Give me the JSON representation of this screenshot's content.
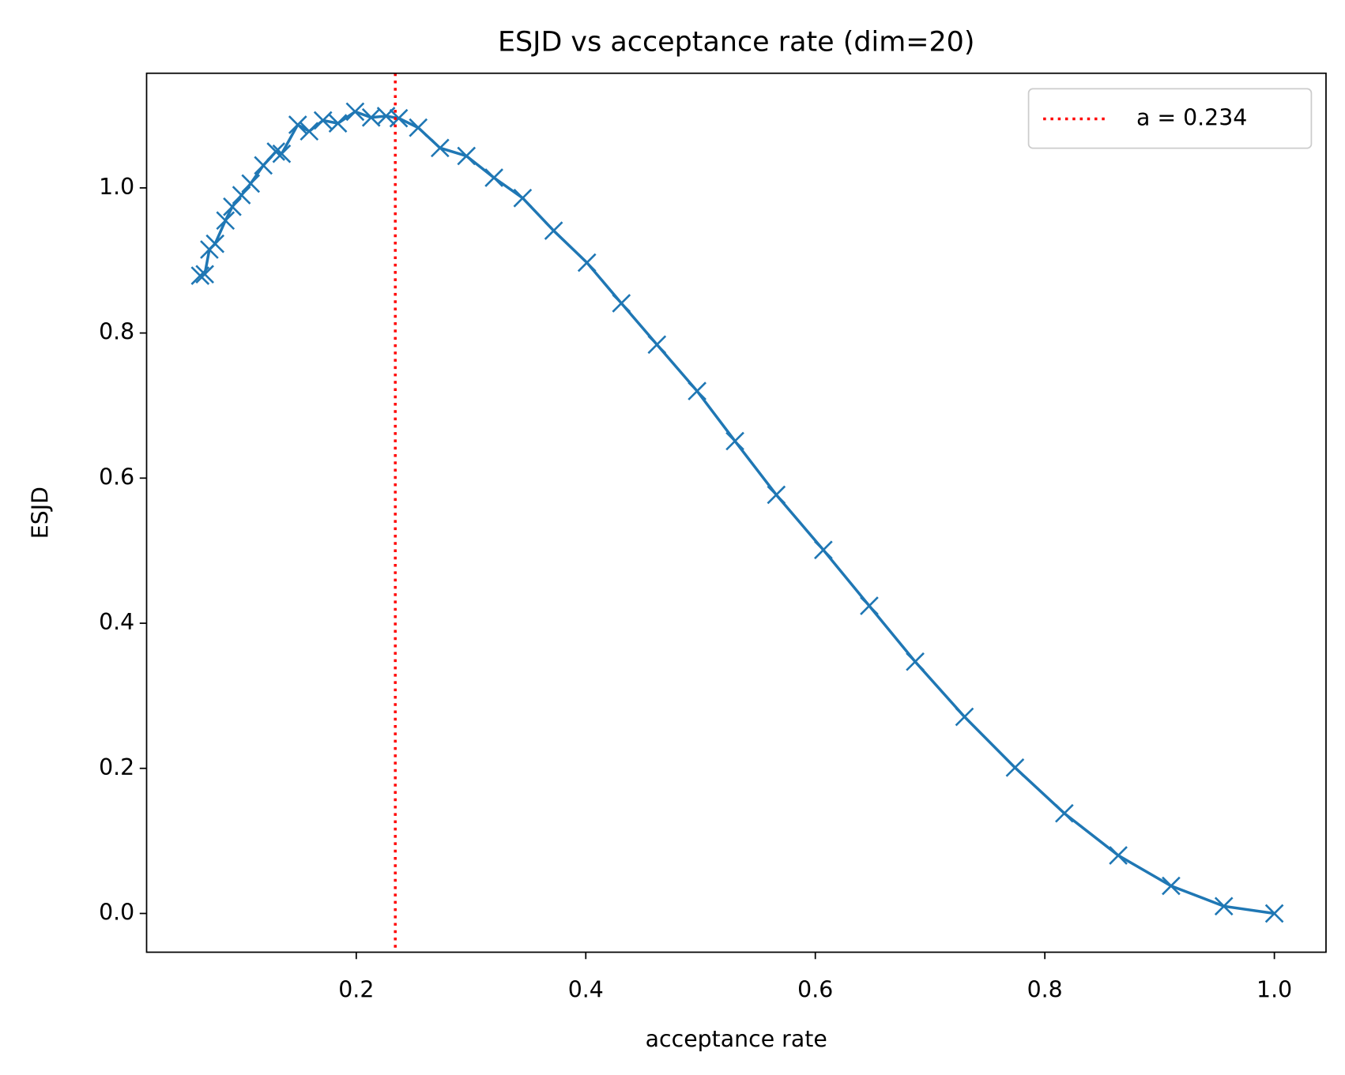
{
  "chart_data": {
    "type": "line",
    "title": "ESJD vs acceptance rate (dim=20)",
    "x_label": "acceptance rate",
    "y_label": "ESJD",
    "x": [
      0.064,
      0.068,
      0.072,
      0.077,
      0.086,
      0.092,
      0.1,
      0.108,
      0.119,
      0.13,
      0.135,
      0.149,
      0.159,
      0.171,
      0.184,
      0.199,
      0.213,
      0.226,
      0.237,
      0.254,
      0.273,
      0.296,
      0.32,
      0.345,
      0.372,
      0.401,
      0.431,
      0.462,
      0.497,
      0.53,
      0.566,
      0.607,
      0.647,
      0.687,
      0.73,
      0.774,
      0.817,
      0.864,
      0.91,
      0.956,
      1.0
    ],
    "series": [
      {
        "name": "ESJD",
        "color": "#1f77b4",
        "marker": "x",
        "values": [
          0.879,
          0.881,
          0.915,
          0.923,
          0.955,
          0.974,
          0.99,
          1.006,
          1.031,
          1.05,
          1.047,
          1.087,
          1.078,
          1.093,
          1.089,
          1.105,
          1.097,
          1.099,
          1.096,
          1.083,
          1.055,
          1.044,
          1.014,
          0.986,
          0.941,
          0.897,
          0.841,
          0.784,
          0.72,
          0.651,
          0.577,
          0.501,
          0.424,
          0.347,
          0.271,
          0.201,
          0.138,
          0.08,
          0.038,
          0.01,
          0.0
        ]
      }
    ],
    "vline": {
      "x": 0.234,
      "label": "a = 0.234",
      "color": "#ff0000",
      "style": "dotted"
    },
    "xlim": [
      0.0173,
      1.045
    ],
    "ylim": [
      -0.0534,
      1.158
    ],
    "xticks": [
      0.2,
      0.4,
      0.6,
      0.8,
      {
        "value": 1.0,
        "label": "1.0"
      }
    ],
    "yticks": [
      {
        "value": 0,
        "label": "0.0"
      },
      0.2,
      0.4,
      0.6,
      0.8,
      {
        "value": 1,
        "label": "1.0"
      }
    ],
    "grid": false,
    "legend": "upper right"
  }
}
